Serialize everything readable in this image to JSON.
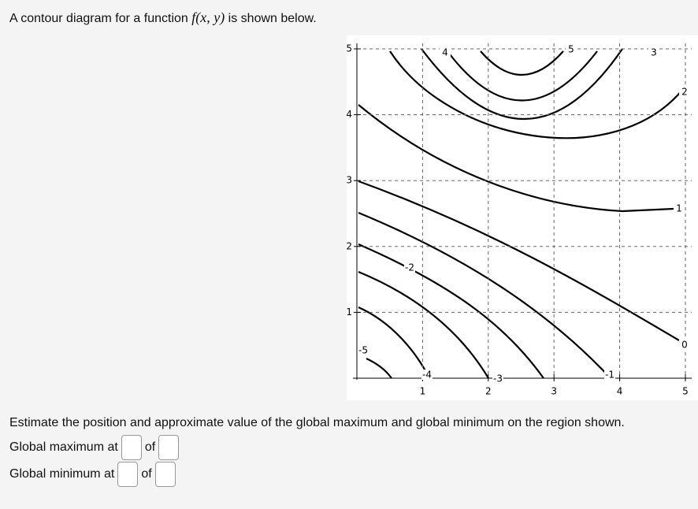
{
  "intro": {
    "before": "A contour diagram for a function",
    "math": "f(x, y)",
    "after": "is shown below."
  },
  "figure": {
    "xlim": [
      0,
      5
    ],
    "ylim": [
      0,
      5
    ],
    "xticks": [
      1,
      2,
      3,
      4,
      5
    ],
    "yticks": [
      1,
      2,
      3,
      4,
      5
    ],
    "contour_labels": [
      4,
      5,
      3,
      2,
      1,
      0,
      -1,
      -2,
      -3,
      -4,
      -5
    ]
  },
  "question": "Estimate the position and approximate value of the global maximum and global minimum on the region shown.",
  "answers": [
    {
      "label": "Global maximum at",
      "of": "of"
    },
    {
      "label": "Global minimum at",
      "of": "of"
    }
  ]
}
